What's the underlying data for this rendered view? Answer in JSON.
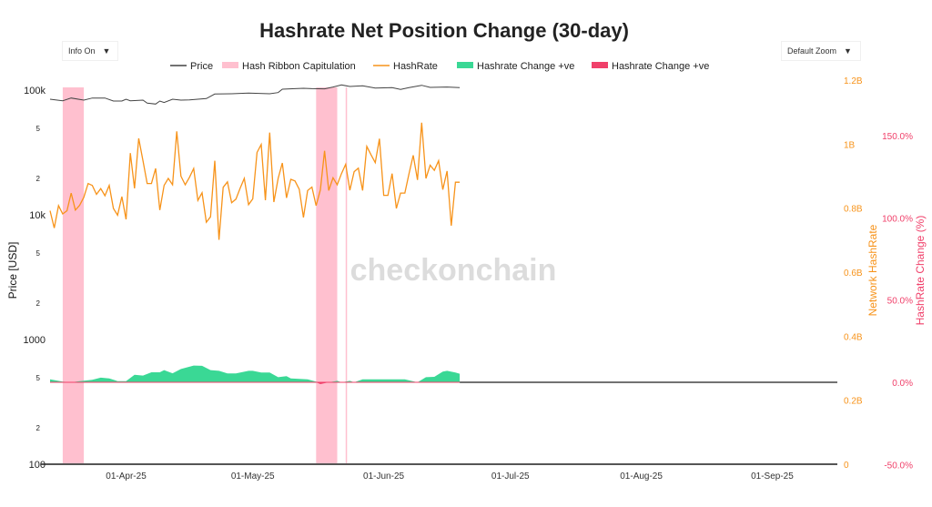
{
  "title": "Hashrate Net Position Change (30-day)",
  "controls": {
    "info": "Info On",
    "zoom": "Default Zoom",
    "arrow": "▼"
  },
  "watermark": "checkonchain",
  "colors": {
    "price": "#444444",
    "capitulation": "#ffc0cf",
    "hashrate": "#f7931a",
    "change_pos": "#3ad895",
    "change_neg": "#f0406a",
    "pct_axis": "#f0406a"
  },
  "chart_data": {
    "type": "line",
    "title": "Hashrate Net Position Change (30-day)",
    "legend": {
      "placement": "top-center",
      "entries": [
        "Price",
        "Hash Ribbon Capitulation",
        "HashRate",
        "Hashrate Change +ve",
        "Hashrate Change +ve"
      ]
    },
    "x_axis": {
      "type": "date",
      "range": [
        "2025-03-14",
        "2025-09-16"
      ],
      "ticks": [
        "01-Apr-25",
        "01-May-25",
        "01-Jun-25",
        "01-Jul-25",
        "01-Aug-25",
        "01-Sep-25"
      ],
      "tick_dates": [
        "2025-04-01",
        "2025-05-01",
        "2025-06-01",
        "2025-07-01",
        "2025-08-01",
        "2025-09-01"
      ]
    },
    "y_left": {
      "label": "Price [USD]",
      "scale": "log",
      "range": [
        100,
        100000
      ],
      "ticks": [
        {
          "v": 100000,
          "t": "100k"
        },
        {
          "v": 50000,
          "t": "5"
        },
        {
          "v": 20000,
          "t": "2"
        },
        {
          "v": 10000,
          "t": "10k"
        },
        {
          "v": 5000,
          "t": "5"
        },
        {
          "v": 2000,
          "t": "2"
        },
        {
          "v": 1000,
          "t": "1000"
        },
        {
          "v": 500,
          "t": "5"
        },
        {
          "v": 200,
          "t": "2"
        },
        {
          "v": 100,
          "t": "100"
        }
      ]
    },
    "y_right1": {
      "label": "Network HashRate",
      "range": [
        0,
        1.2
      ],
      "unit": "B",
      "ticks": [
        {
          "v": 1.2,
          "t": "1.2B"
        },
        {
          "v": 1.0,
          "t": "1B"
        },
        {
          "v": 0.8,
          "t": "0.8B"
        },
        {
          "v": 0.6,
          "t": "0.6B"
        },
        {
          "v": 0.4,
          "t": "0.4B"
        },
        {
          "v": 0.2,
          "t": "0.2B"
        },
        {
          "v": 0,
          "t": "0"
        }
      ]
    },
    "y_right2": {
      "label": "HashRate Change (%)",
      "range": [
        -50,
        183
      ],
      "ticks": [
        {
          "v": 150,
          "t": "150.0%"
        },
        {
          "v": 100,
          "t": "100.0%"
        },
        {
          "v": 50,
          "t": "50.0%"
        },
        {
          "v": 0,
          "t": "0.0%"
        },
        {
          "v": -50,
          "t": "-50.0%"
        }
      ]
    },
    "capitulation_periods": [
      [
        "2025-03-17",
        "2025-03-22"
      ],
      [
        "2025-05-16",
        "2025-05-21"
      ],
      [
        "2025-05-23",
        "2025-05-23"
      ]
    ],
    "price": {
      "name": "Price",
      "points": [
        [
          "2025-03-14",
          84500
        ],
        [
          "2025-03-17",
          82200
        ],
        [
          "2025-03-19",
          86400
        ],
        [
          "2025-03-22",
          83100
        ],
        [
          "2025-03-24",
          86400
        ],
        [
          "2025-03-27",
          86400
        ],
        [
          "2025-03-29",
          81700
        ],
        [
          "2025-03-31",
          81700
        ],
        [
          "2025-04-01",
          84500
        ],
        [
          "2025-04-02",
          82200
        ],
        [
          "2025-04-05",
          83100
        ],
        [
          "2025-04-06",
          78600
        ],
        [
          "2025-04-08",
          77300
        ],
        [
          "2025-04-09",
          81700
        ],
        [
          "2025-04-10",
          79500
        ],
        [
          "2025-04-12",
          84500
        ],
        [
          "2025-04-14",
          83100
        ],
        [
          "2025-04-16",
          83600
        ],
        [
          "2025-04-20",
          85500
        ],
        [
          "2025-04-22",
          93000
        ],
        [
          "2025-04-26",
          93500
        ],
        [
          "2025-04-30",
          94600
        ],
        [
          "2025-05-05",
          93500
        ],
        [
          "2025-05-07",
          95600
        ],
        [
          "2025-05-08",
          101700
        ],
        [
          "2025-05-11",
          102800
        ],
        [
          "2025-05-13",
          103400
        ],
        [
          "2025-05-15",
          102800
        ],
        [
          "2025-05-18",
          102300
        ],
        [
          "2025-05-20",
          105800
        ],
        [
          "2025-05-22",
          110000
        ],
        [
          "2025-05-24",
          107000
        ],
        [
          "2025-05-27",
          108200
        ],
        [
          "2025-05-30",
          104000
        ],
        [
          "2025-06-03",
          104600
        ],
        [
          "2025-06-05",
          101100
        ],
        [
          "2025-06-07",
          104600
        ],
        [
          "2025-06-10",
          109400
        ],
        [
          "2025-06-12",
          105200
        ],
        [
          "2025-06-16",
          105800
        ],
        [
          "2025-06-19",
          104600
        ]
      ]
    },
    "hashrate": {
      "name": "HashRate",
      "start": "2025-03-14",
      "step": "1 day",
      "values_B": [
        0.792,
        0.738,
        0.808,
        0.782,
        0.792,
        0.847,
        0.794,
        0.809,
        0.834,
        0.877,
        0.871,
        0.843,
        0.861,
        0.839,
        0.871,
        0.799,
        0.778,
        0.836,
        0.765,
        0.972,
        0.862,
        1.018,
        0.948,
        0.877,
        0.877,
        0.924,
        0.794,
        0.871,
        0.893,
        0.873,
        1.04,
        0.9,
        0.873,
        0.896,
        0.924,
        0.824,
        0.848,
        0.756,
        0.773,
        0.948,
        0.701,
        0.865,
        0.882,
        0.817,
        0.828,
        0.862,
        0.893,
        0.811,
        0.829,
        0.974,
        0.999,
        0.825,
        1.036,
        0.819,
        0.893,
        0.941,
        0.832,
        0.89,
        0.885,
        0.859,
        0.771,
        0.855,
        0.866,
        0.808,
        0.857,
        0.979,
        0.855,
        0.895,
        0.873,
        0.908,
        0.937,
        0.856,
        0.914,
        0.925,
        0.855,
        0.993,
        0.967,
        0.942,
        1.017,
        0.84,
        0.84,
        0.908,
        0.799,
        0.847,
        0.847,
        0.908,
        0.965,
        0.888,
        1.067,
        0.893,
        0.934,
        0.918,
        0.948,
        0.858,
        0.916,
        0.745,
        0.881,
        0.881
      ]
    },
    "hashrate_change_pct": {
      "points": [
        [
          "2025-03-14",
          1.8
        ],
        [
          "2025-03-17",
          0.4
        ],
        [
          "2025-03-19",
          0
        ],
        [
          "2025-03-21",
          0.7
        ],
        [
          "2025-03-24",
          1.5
        ],
        [
          "2025-03-26",
          2.8
        ],
        [
          "2025-03-28",
          2.4
        ],
        [
          "2025-03-30",
          0.7
        ],
        [
          "2025-04-01",
          0.7
        ],
        [
          "2025-04-03",
          4.6
        ],
        [
          "2025-04-05",
          4.1
        ],
        [
          "2025-04-07",
          6.1
        ],
        [
          "2025-04-09",
          6.1
        ],
        [
          "2025-04-10",
          7.4
        ],
        [
          "2025-04-12",
          5.5
        ],
        [
          "2025-04-14",
          8.1
        ],
        [
          "2025-04-17",
          10.2
        ],
        [
          "2025-04-19",
          10.0
        ],
        [
          "2025-04-21",
          7.4
        ],
        [
          "2025-04-23",
          7.0
        ],
        [
          "2025-04-25",
          5.4
        ],
        [
          "2025-04-27",
          5.4
        ],
        [
          "2025-04-30",
          7.0
        ],
        [
          "2025-05-01",
          7.0
        ],
        [
          "2025-05-03",
          5.9
        ],
        [
          "2025-05-05",
          5.9
        ],
        [
          "2025-05-07",
          3.1
        ],
        [
          "2025-05-09",
          3.7
        ],
        [
          "2025-05-10",
          2.4
        ],
        [
          "2025-05-14",
          1.8
        ],
        [
          "2025-05-16",
          0.4
        ],
        [
          "2025-05-17",
          -1.1
        ],
        [
          "2025-05-19",
          0
        ],
        [
          "2025-05-21",
          0.9
        ],
        [
          "2025-05-22",
          0
        ],
        [
          "2025-05-24",
          0.9
        ],
        [
          "2025-05-25",
          0
        ],
        [
          "2025-05-27",
          1.8
        ],
        [
          "2025-06-06",
          1.8
        ],
        [
          "2025-06-09",
          0
        ],
        [
          "2025-06-11",
          3.1
        ],
        [
          "2025-06-13",
          3.3
        ],
        [
          "2025-06-15",
          6.5
        ],
        [
          "2025-06-16",
          7.0
        ],
        [
          "2025-06-18",
          5.9
        ],
        [
          "2025-06-19",
          5.2
        ]
      ]
    }
  }
}
